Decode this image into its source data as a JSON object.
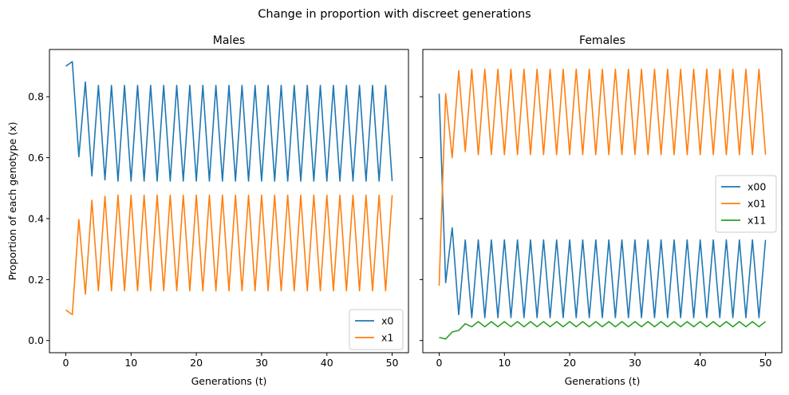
{
  "figure": {
    "suptitle": "Change in proportion with discreet generations"
  },
  "chart_data": [
    {
      "type": "line",
      "title": "Males",
      "xlabel": "Generations (t)",
      "ylabel": "Proportion of each genotype (x)",
      "xlim": [
        -2.5,
        52.5
      ],
      "ylim": [
        -0.04,
        0.955
      ],
      "xticks": [
        0,
        10,
        20,
        30,
        40,
        50
      ],
      "xtick_labels": [
        "0",
        "10",
        "20",
        "30",
        "40",
        "50"
      ],
      "yticks": [
        0.0,
        0.2,
        0.4,
        0.6,
        0.8
      ],
      "ytick_labels": [
        "0.0",
        "0.2",
        "0.4",
        "0.6",
        "0.8"
      ],
      "grid": false,
      "legend_position": "lower right",
      "x": [
        0,
        1,
        2,
        3,
        4,
        5,
        6,
        7,
        8,
        9,
        10,
        11,
        12,
        13,
        14,
        15,
        16,
        17,
        18,
        19,
        20,
        21,
        22,
        23,
        24,
        25,
        26,
        27,
        28,
        29,
        30,
        31,
        32,
        33,
        34,
        35,
        36,
        37,
        38,
        39,
        40,
        41,
        42,
        43,
        44,
        45,
        46,
        47,
        48,
        49,
        50
      ],
      "series": [
        {
          "name": "x0",
          "color": "#1f77b4",
          "values": [
            0.9,
            0.915,
            0.603,
            0.848,
            0.54,
            0.837,
            0.527,
            0.837,
            0.523,
            0.837,
            0.523,
            0.837,
            0.523,
            0.837,
            0.523,
            0.837,
            0.523,
            0.837,
            0.523,
            0.837,
            0.523,
            0.837,
            0.523,
            0.837,
            0.523,
            0.837,
            0.523,
            0.837,
            0.523,
            0.837,
            0.523,
            0.837,
            0.523,
            0.837,
            0.523,
            0.837,
            0.523,
            0.837,
            0.523,
            0.837,
            0.523,
            0.837,
            0.523,
            0.837,
            0.523,
            0.837,
            0.523,
            0.837,
            0.523,
            0.837,
            0.523
          ]
        },
        {
          "name": "x1",
          "color": "#ff7f0e",
          "values": [
            0.1,
            0.085,
            0.397,
            0.152,
            0.46,
            0.163,
            0.473,
            0.163,
            0.477,
            0.163,
            0.477,
            0.163,
            0.477,
            0.163,
            0.477,
            0.163,
            0.477,
            0.163,
            0.477,
            0.163,
            0.477,
            0.163,
            0.477,
            0.163,
            0.477,
            0.163,
            0.477,
            0.163,
            0.477,
            0.163,
            0.477,
            0.163,
            0.477,
            0.163,
            0.477,
            0.163,
            0.477,
            0.163,
            0.477,
            0.163,
            0.477,
            0.163,
            0.477,
            0.163,
            0.477,
            0.163,
            0.477,
            0.163,
            0.477,
            0.163,
            0.477
          ]
        }
      ]
    },
    {
      "type": "line",
      "title": "Females",
      "xlabel": "Generations (t)",
      "ylabel": "",
      "xlim": [
        -2.5,
        52.5
      ],
      "ylim": [
        -0.04,
        0.955
      ],
      "xticks": [
        0,
        10,
        20,
        30,
        40,
        50
      ],
      "xtick_labels": [
        "0",
        "10",
        "20",
        "30",
        "40",
        "50"
      ],
      "yticks": [
        0.0,
        0.2,
        0.4,
        0.6,
        0.8
      ],
      "ytick_labels": [],
      "grid": false,
      "legend_position": "center right",
      "x": [
        0,
        1,
        2,
        3,
        4,
        5,
        6,
        7,
        8,
        9,
        10,
        11,
        12,
        13,
        14,
        15,
        16,
        17,
        18,
        19,
        20,
        21,
        22,
        23,
        24,
        25,
        26,
        27,
        28,
        29,
        30,
        31,
        32,
        33,
        34,
        35,
        36,
        37,
        38,
        39,
        40,
        41,
        42,
        43,
        44,
        45,
        46,
        47,
        48,
        49,
        50
      ],
      "series": [
        {
          "name": "x00",
          "color": "#1f77b4",
          "values": [
            0.81,
            0.19,
            0.37,
            0.085,
            0.33,
            0.075,
            0.33,
            0.075,
            0.33,
            0.075,
            0.33,
            0.075,
            0.33,
            0.075,
            0.33,
            0.075,
            0.33,
            0.075,
            0.33,
            0.075,
            0.33,
            0.075,
            0.33,
            0.075,
            0.33,
            0.075,
            0.33,
            0.075,
            0.33,
            0.075,
            0.33,
            0.075,
            0.33,
            0.075,
            0.33,
            0.075,
            0.33,
            0.075,
            0.33,
            0.075,
            0.33,
            0.075,
            0.33,
            0.075,
            0.33,
            0.075,
            0.33,
            0.075,
            0.33,
            0.075,
            0.33
          ]
        },
        {
          "name": "x01",
          "color": "#ff7f0e",
          "values": [
            0.18,
            0.81,
            0.6,
            0.885,
            0.62,
            0.89,
            0.61,
            0.89,
            0.61,
            0.89,
            0.61,
            0.89,
            0.61,
            0.89,
            0.61,
            0.89,
            0.61,
            0.89,
            0.61,
            0.89,
            0.61,
            0.89,
            0.61,
            0.89,
            0.61,
            0.89,
            0.61,
            0.89,
            0.61,
            0.89,
            0.61,
            0.89,
            0.61,
            0.89,
            0.61,
            0.89,
            0.61,
            0.89,
            0.61,
            0.89,
            0.61,
            0.89,
            0.61,
            0.89,
            0.61,
            0.89,
            0.61,
            0.89,
            0.61,
            0.89,
            0.61
          ]
        },
        {
          "name": "x11",
          "color": "#2ca02c",
          "values": [
            0.01,
            0.005,
            0.028,
            0.033,
            0.055,
            0.045,
            0.062,
            0.045,
            0.062,
            0.045,
            0.062,
            0.045,
            0.062,
            0.045,
            0.062,
            0.045,
            0.062,
            0.045,
            0.062,
            0.045,
            0.062,
            0.045,
            0.062,
            0.045,
            0.062,
            0.045,
            0.062,
            0.045,
            0.062,
            0.045,
            0.062,
            0.045,
            0.062,
            0.045,
            0.062,
            0.045,
            0.062,
            0.045,
            0.062,
            0.045,
            0.062,
            0.045,
            0.062,
            0.045,
            0.062,
            0.045,
            0.062,
            0.045,
            0.062,
            0.045,
            0.062
          ]
        }
      ]
    }
  ]
}
